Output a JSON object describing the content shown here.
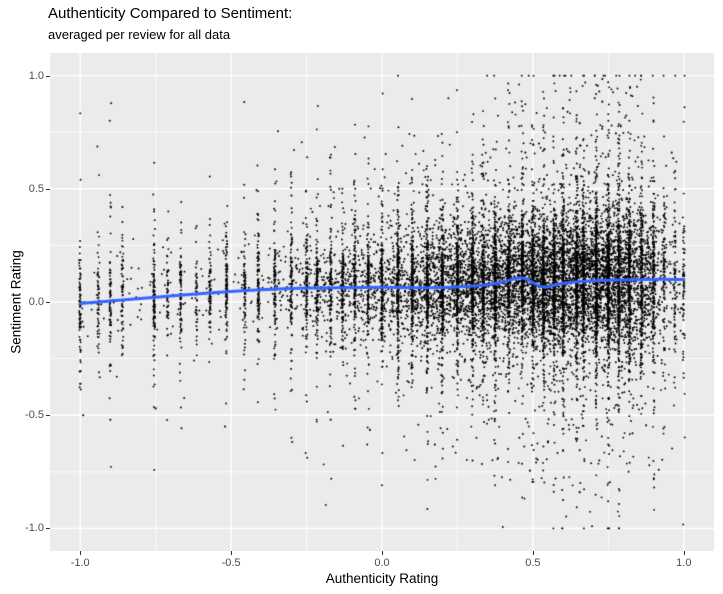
{
  "colors": {
    "plot_bg": "#FFFFFF",
    "panel_bg": "#EBEBEB",
    "grid": "#FFFFFF",
    "point": "#000000",
    "smooth_line": "#3366FF",
    "tick_label": "#4D4D4D",
    "tick_mark": "#333333",
    "text": "#000000"
  },
  "chart_data": {
    "type": "scatter",
    "title": "Authenticity Compared to Sentiment:",
    "subtitle": "averaged per review for all data",
    "xlabel": "Authenticity Rating",
    "ylabel": "Sentiment Rating",
    "xlim": [
      -1.1,
      1.1
    ],
    "ylim": [
      -1.1,
      1.1
    ],
    "x_ticks": [
      -1.0,
      -0.5,
      0.0,
      0.5,
      1.0
    ],
    "x_tick_labels": [
      "-1.0",
      "-0.5",
      "0.0",
      "0.5",
      "1.0"
    ],
    "y_ticks": [
      1.0,
      0.5,
      0.0,
      -0.5,
      -1.0
    ],
    "y_tick_labels": [
      "1.0",
      "0.5",
      "0.0",
      "-0.5",
      "-1.0"
    ],
    "minor_ticks": [
      -0.75,
      -0.25,
      0.25,
      0.75
    ],
    "grid": "white major and minor gridlines on gray panel (ggplot2 style)",
    "legend": "none",
    "note": "Dense cloud of ~15000 black review points; sentiment vs authenticity averaged per review. Density increases toward upper-right (x 0.2..0.9, y -0.15..0.25, nearly solid black). Strong vertical banding at repeated authenticity values. Blue loess smooth nearly flat, rising from ~0.0 at x=-1 to ~0.10 at x=1 with small bump near x=0.46.",
    "smooth_line": {
      "color": "#3366FF",
      "width": 3,
      "points": [
        [
          -1.0,
          -0.007
        ],
        [
          -0.9,
          0.004
        ],
        [
          -0.8,
          0.016
        ],
        [
          -0.7,
          0.027
        ],
        [
          -0.6,
          0.037
        ],
        [
          -0.5,
          0.047
        ],
        [
          -0.4,
          0.055
        ],
        [
          -0.3,
          0.06
        ],
        [
          -0.2,
          0.063
        ],
        [
          -0.1,
          0.064
        ],
        [
          0.0,
          0.065
        ],
        [
          0.1,
          0.064
        ],
        [
          0.15,
          0.062
        ],
        [
          0.2,
          0.064
        ],
        [
          0.25,
          0.067
        ],
        [
          0.3,
          0.07
        ],
        [
          0.35,
          0.076
        ],
        [
          0.4,
          0.088
        ],
        [
          0.44,
          0.103
        ],
        [
          0.46,
          0.108
        ],
        [
          0.48,
          0.102
        ],
        [
          0.5,
          0.085
        ],
        [
          0.52,
          0.07
        ],
        [
          0.54,
          0.064
        ],
        [
          0.56,
          0.07
        ],
        [
          0.58,
          0.078
        ],
        [
          0.6,
          0.083
        ],
        [
          0.65,
          0.09
        ],
        [
          0.7,
          0.094
        ],
        [
          0.75,
          0.096
        ],
        [
          0.8,
          0.098
        ],
        [
          0.85,
          0.099
        ],
        [
          0.9,
          0.1
        ],
        [
          0.95,
          0.1
        ],
        [
          1.0,
          0.099
        ]
      ]
    },
    "scatter": {
      "n": 15000,
      "seed": 1337,
      "point_radius": 0.95,
      "y_mean_offset": 0.005,
      "stripe_pick_prob": 0.18,
      "mix_continuous": [
        0.78,
        0.93,
        0.99
      ],
      "mix_striped": [
        0.62,
        0.88,
        0.985
      ],
      "x_density": [
        [
          -1.0,
          0.5
        ],
        [
          -0.9,
          0.42
        ],
        [
          -0.8,
          0.42
        ],
        [
          -0.7,
          0.45
        ],
        [
          -0.6,
          0.55
        ],
        [
          -0.5,
          0.65
        ],
        [
          -0.4,
          0.95
        ],
        [
          -0.3,
          1.4
        ],
        [
          -0.2,
          2.0
        ],
        [
          -0.1,
          2.7
        ],
        [
          0.0,
          3.5
        ],
        [
          0.1,
          4.5
        ],
        [
          0.2,
          5.7
        ],
        [
          0.3,
          6.9
        ],
        [
          0.4,
          8.2
        ],
        [
          0.5,
          9.2
        ],
        [
          0.6,
          10.2
        ],
        [
          0.7,
          10.6
        ],
        [
          0.78,
          10.2
        ],
        [
          0.85,
          7.8
        ],
        [
          0.9,
          4.5
        ],
        [
          0.94,
          2.0
        ],
        [
          0.97,
          1.1
        ],
        [
          1.0,
          0.8
        ]
      ],
      "y_sd": [
        [
          -1.0,
          0.1
        ],
        [
          -0.6,
          0.1
        ],
        [
          -0.3,
          0.105
        ],
        [
          0.0,
          0.11
        ],
        [
          0.2,
          0.12
        ],
        [
          0.4,
          0.13
        ],
        [
          0.6,
          0.145
        ],
        [
          0.75,
          0.155
        ],
        [
          0.9,
          0.15
        ],
        [
          1.0,
          0.13
        ]
      ],
      "stripe_prob": [
        [
          -1.1,
          0.75
        ],
        [
          -0.35,
          0.5
        ],
        [
          0.1,
          0.35
        ]
      ],
      "stripes": [
        [
          -1.0,
          2.5
        ],
        [
          -0.94,
          1.5
        ],
        [
          -0.9,
          2
        ],
        [
          -0.86,
          1.5
        ],
        [
          -0.755,
          2.5
        ],
        [
          -0.71,
          0.7
        ],
        [
          -0.667,
          2
        ],
        [
          -0.615,
          0.8
        ],
        [
          -0.57,
          1.5
        ],
        [
          -0.515,
          1.8
        ],
        [
          -0.455,
          1
        ],
        [
          -0.41,
          1.8
        ],
        [
          -0.355,
          1
        ],
        [
          -0.3,
          2
        ],
        [
          -0.25,
          1.2
        ],
        [
          -0.215,
          1.8
        ],
        [
          -0.17,
          1
        ],
        [
          -0.13,
          1.8
        ],
        [
          -0.09,
          1.2
        ],
        [
          -0.046,
          1.5
        ],
        [
          0.0,
          2
        ],
        [
          0.053,
          1.8
        ],
        [
          0.1,
          1.5
        ],
        [
          0.15,
          2
        ],
        [
          0.2,
          2.5
        ],
        [
          0.25,
          2.5
        ],
        [
          0.3,
          2.5
        ],
        [
          0.335,
          2
        ],
        [
          0.375,
          2.5
        ],
        [
          0.42,
          2
        ],
        [
          0.465,
          2.5
        ],
        [
          0.5,
          3
        ],
        [
          0.535,
          2.5
        ],
        [
          0.57,
          2.5
        ],
        [
          0.6,
          3
        ],
        [
          0.645,
          2.5
        ],
        [
          0.667,
          3
        ],
        [
          0.71,
          3
        ],
        [
          0.75,
          3.5
        ],
        [
          0.785,
          2.5
        ],
        [
          0.82,
          2.5
        ],
        [
          0.86,
          2
        ],
        [
          0.9,
          2.5
        ],
        [
          0.935,
          1.2
        ],
        [
          0.97,
          1.8
        ],
        [
          1.0,
          1.5
        ]
      ],
      "outliers": [
        [
          0.705,
          1.0
        ],
        [
          0.73,
          0.985
        ],
        [
          0.715,
          0.955
        ],
        [
          0.72,
          0.93
        ],
        [
          0.705,
          0.9
        ],
        [
          0.73,
          0.885
        ],
        [
          0.6,
          0.855
        ],
        [
          0.615,
          0.84
        ],
        [
          0.645,
          0.825
        ],
        [
          0.655,
          0.79
        ],
        [
          0.73,
          0.775
        ],
        [
          0.775,
          0.745
        ],
        [
          0.52,
          0.7
        ],
        [
          0.475,
          0.66
        ],
        [
          0.96,
          0.66
        ],
        [
          0.965,
          0.635
        ],
        [
          0.86,
          0.62
        ],
        [
          0.425,
          0.6
        ],
        [
          0.33,
          0.565
        ],
        [
          -0.3,
          0.47
        ],
        [
          -0.17,
          0.42
        ],
        [
          -0.86,
          0.42
        ],
        [
          -0.755,
          0.4
        ],
        [
          0.785,
          -1.0
        ],
        [
          0.6,
          -0.875
        ],
        [
          0.655,
          -0.84
        ],
        [
          0.575,
          -0.78
        ],
        [
          0.49,
          -0.745
        ],
        [
          0.72,
          -0.7
        ],
        [
          0.3,
          -0.7
        ],
        [
          0.655,
          -0.655
        ],
        [
          0.175,
          -0.63
        ],
        [
          0.375,
          -0.625
        ],
        [
          0.55,
          -0.62
        ],
        [
          0.455,
          -0.6
        ],
        [
          0.83,
          -0.58
        ],
        [
          0.875,
          -0.545
        ],
        [
          -0.04,
          -0.565
        ],
        [
          -0.52,
          -0.55
        ],
        [
          -0.17,
          -0.52
        ],
        [
          -0.9,
          -0.52
        ],
        [
          -0.99,
          -0.5
        ],
        [
          -0.75,
          -0.47
        ]
      ]
    }
  }
}
